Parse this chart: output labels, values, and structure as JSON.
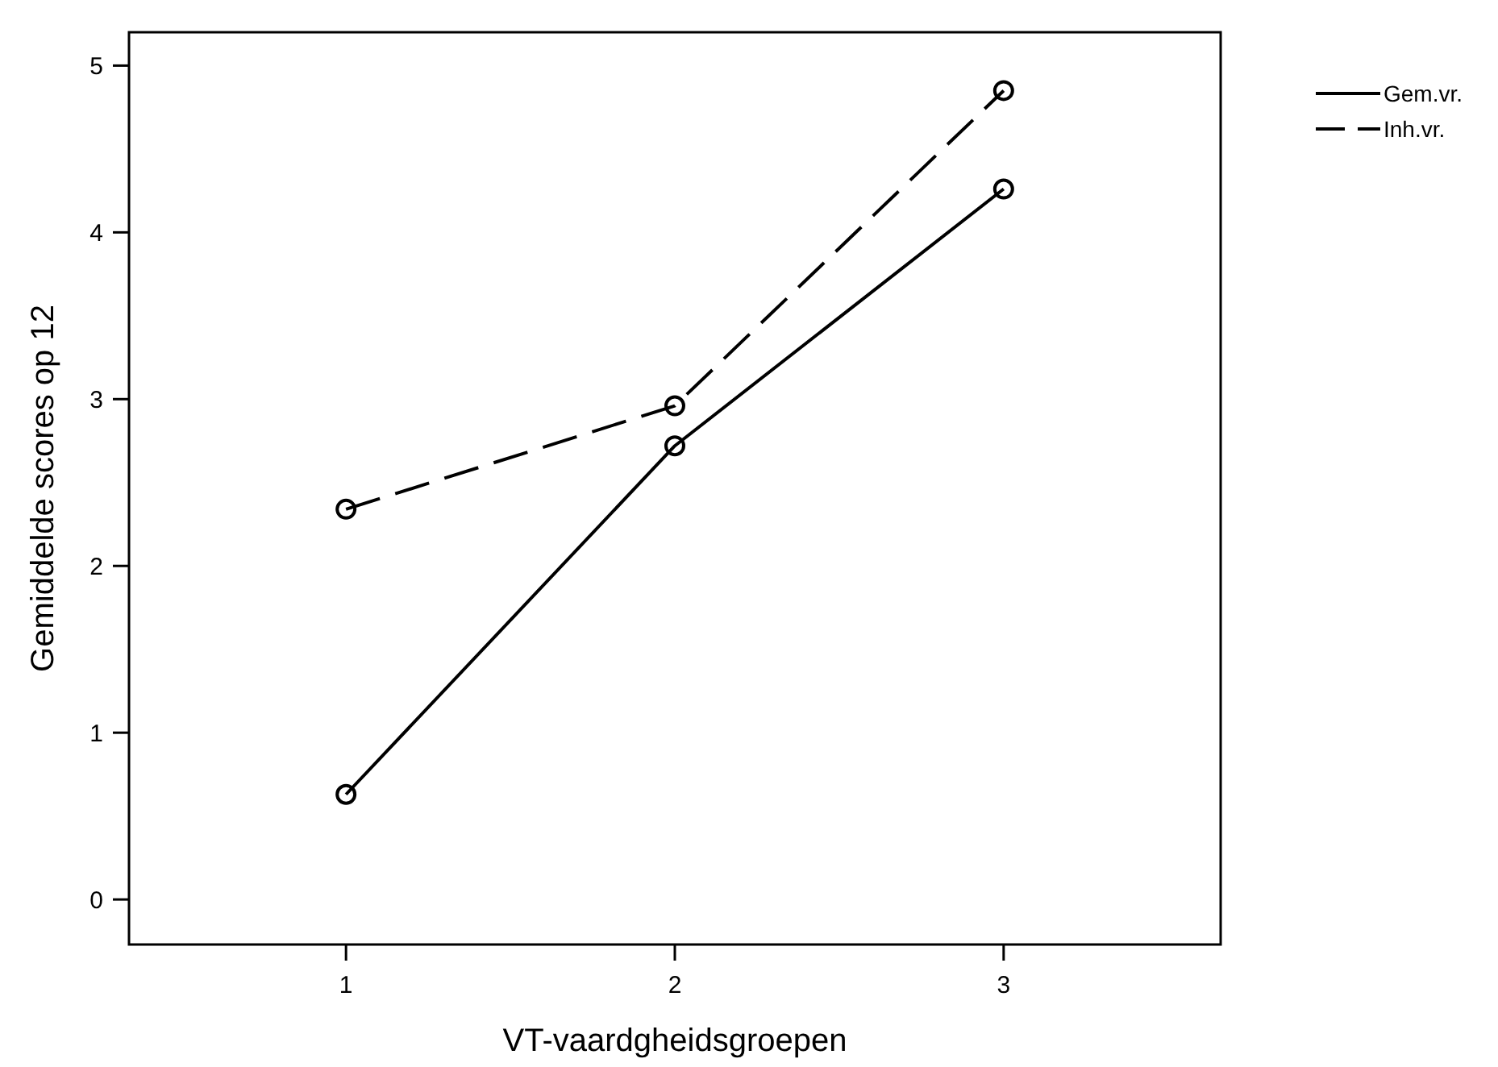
{
  "chart_data": {
    "type": "line",
    "xlabel": "VT-vaardgheidsgroepen",
    "ylabel": "Gemiddelde scores op 12",
    "x": [
      1,
      2,
      3
    ],
    "xlim": [
      0.34,
      3.66
    ],
    "xticks": [
      1,
      2,
      3
    ],
    "ylim": [
      -0.27,
      5.2
    ],
    "yticks": [
      0,
      1,
      2,
      3,
      4,
      5
    ],
    "marker": "circle",
    "legend": "top right",
    "grid": false,
    "series": [
      {
        "name": "Gem.vr.",
        "color": "#000000",
        "line_style": "solid",
        "values": [
          0.63,
          2.72,
          4.26
        ]
      },
      {
        "name": "Inh.vr.",
        "color": "#000000",
        "line_style": "dashed",
        "values": [
          2.34,
          2.96,
          4.85
        ]
      }
    ]
  }
}
